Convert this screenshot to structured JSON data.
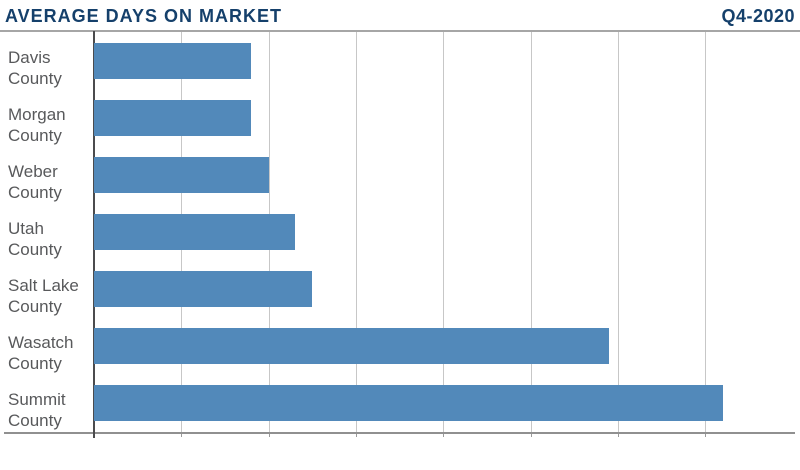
{
  "header": {
    "title": "AVERAGE DAYS ON MARKET",
    "period": "Q4-2020"
  },
  "chart_data": {
    "type": "bar",
    "orientation": "horizontal",
    "title": "AVERAGE DAYS ON MARKET",
    "subtitle": "Q4-2020",
    "categories": [
      "Davis County",
      "Morgan County",
      "Weber County",
      "Utah County",
      "Salt Lake County",
      "Wasatch County",
      "Summit County"
    ],
    "category_label_lines": [
      [
        "Davis",
        "County"
      ],
      [
        "Morgan",
        "County"
      ],
      [
        "Weber",
        "County"
      ],
      [
        "Utah",
        "County"
      ],
      [
        "Salt Lake",
        "County"
      ],
      [
        "Wasatch",
        "County"
      ],
      [
        "Summit",
        "County"
      ]
    ],
    "values": [
      18,
      18,
      20,
      23,
      25,
      59,
      72
    ],
    "value_labels": [
      "18",
      "18",
      "20",
      "23",
      "25",
      "59",
      "72"
    ],
    "xlabel": "",
    "ylabel": "",
    "xlim": [
      0,
      80
    ],
    "xticks": [
      0,
      10,
      20,
      30,
      40,
      50,
      60,
      70
    ],
    "grid": "vertical",
    "legend": "none",
    "colors": {
      "bar": "#5289ba",
      "title": "#15406b",
      "category_label": "#58595b",
      "value_label": "#48494b",
      "tick_label": "#515254",
      "gridline": "#c7c7c7",
      "axis_line": "#909090",
      "y_axis_line": "#4b4b4d",
      "top_rule": "#a6a6a6",
      "background": "#ffffff"
    }
  }
}
